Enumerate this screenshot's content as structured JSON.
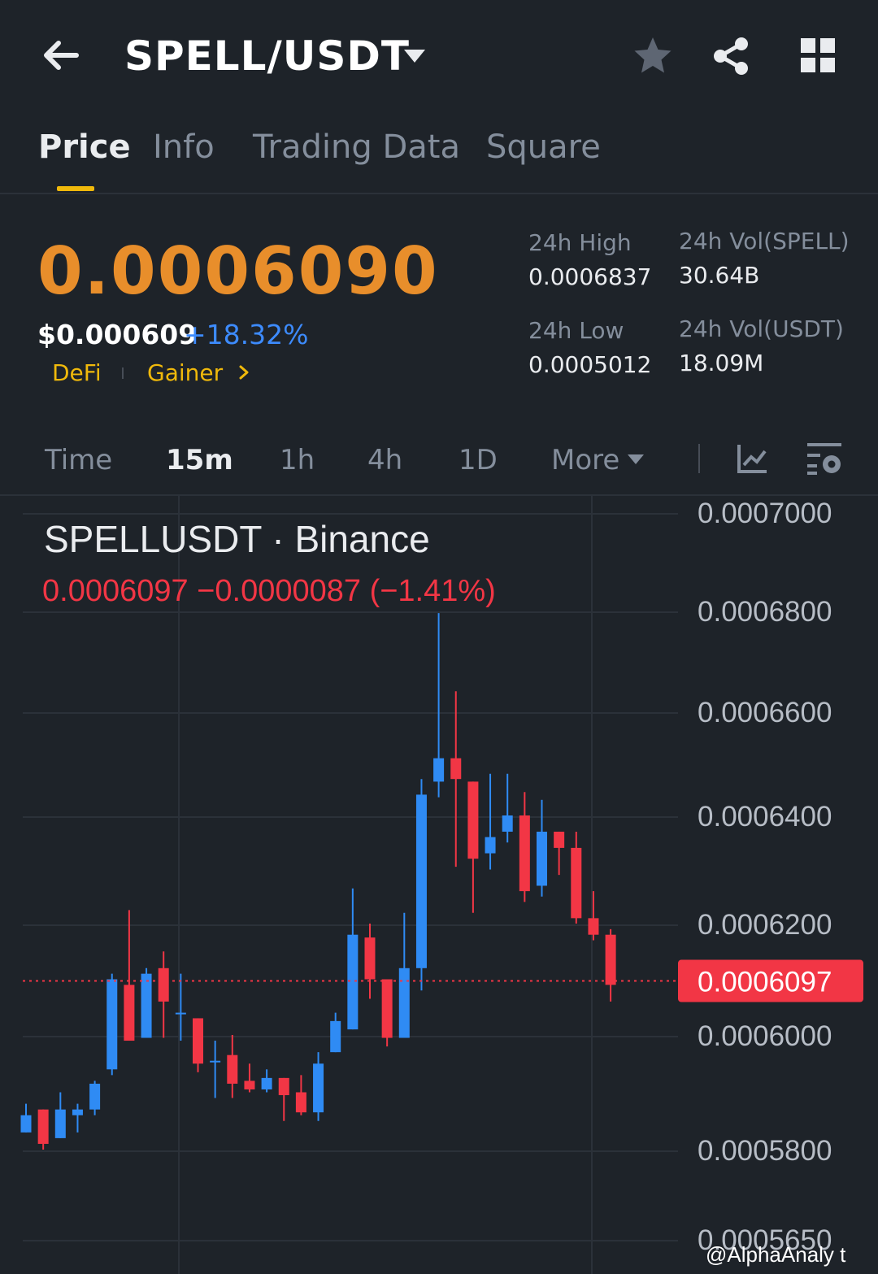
{
  "header": {
    "title": "SPELL/USDT",
    "icons": [
      "back-arrow-icon",
      "caret-down-icon",
      "star-icon",
      "share-icon",
      "grid-icon"
    ]
  },
  "tabs": [
    {
      "label": "Price",
      "active": true
    },
    {
      "label": "Info",
      "active": false
    },
    {
      "label": "Trading Data",
      "active": false
    },
    {
      "label": "Square",
      "active": false
    }
  ],
  "price": {
    "last": "0.0006090",
    "usd": "$0.000609",
    "change_pct": "+18.32%",
    "tags": [
      "DeFi",
      "Gainer"
    ]
  },
  "stats": {
    "high_label": "24h High",
    "high_value": "0.0006837",
    "low_label": "24h Low",
    "low_value": "0.0005012",
    "vol_base_label": "24h Vol(SPELL)",
    "vol_base_value": "30.64B",
    "vol_quote_label": "24h Vol(USDT)",
    "vol_quote_value": "18.09M"
  },
  "timeframes": [
    {
      "label": "Time",
      "active": false
    },
    {
      "label": "15m",
      "active": true
    },
    {
      "label": "1h",
      "active": false
    },
    {
      "label": "4h",
      "active": false
    },
    {
      "label": "1D",
      "active": false
    },
    {
      "label": "More",
      "active": false
    }
  ],
  "chart": {
    "symbol": "SPELLUSDT · Binance",
    "ohlc_line": "0.0006097  −0.0000087 (−1.41%)",
    "current_price_label": "0.0006097",
    "watermark": "@AlphaAnaly t",
    "colors": {
      "up": "#2f8bf4",
      "down": "#f23645",
      "background": "#1e2329",
      "grid": "#2b3139"
    }
  },
  "chart_data": {
    "type": "candlestick",
    "price_axis_ticks": [
      "0.0007000",
      "0.0006800",
      "0.0006600",
      "0.0006400",
      "0.0006200",
      "0.0006000",
      "0.0005800",
      "0.0005650"
    ],
    "last_price": 0.0006097,
    "candles": [
      {
        "o": 0.000583,
        "h": 0.000588,
        "l": 0.000583,
        "c": 0.000586
      },
      {
        "o": 0.000587,
        "h": 0.000587,
        "l": 0.00058,
        "c": 0.000581
      },
      {
        "o": 0.000582,
        "h": 0.00059,
        "l": 0.000582,
        "c": 0.000587
      },
      {
        "o": 0.000586,
        "h": 0.000588,
        "l": 0.000583,
        "c": 0.000587
      },
      {
        "o": 0.000587,
        "h": 0.000592,
        "l": 0.000586,
        "c": 0.0005915
      },
      {
        "o": 0.000594,
        "h": 0.000611,
        "l": 0.000593,
        "c": 0.00061
      },
      {
        "o": 0.000609,
        "h": 0.0006225,
        "l": 0.000599,
        "c": 0.000599
      },
      {
        "o": 0.0005995,
        "h": 0.000612,
        "l": 0.0005995,
        "c": 0.000611
      },
      {
        "o": 0.000612,
        "h": 0.000615,
        "l": 0.0005995,
        "c": 0.000606
      },
      {
        "o": 0.000604,
        "h": 0.000611,
        "l": 0.000599,
        "c": 0.000604
      },
      {
        "o": 0.000603,
        "h": 0.000603,
        "l": 0.0005935,
        "c": 0.000595
      },
      {
        "o": 0.0005955,
        "h": 0.000599,
        "l": 0.000589,
        "c": 0.0005955
      },
      {
        "o": 0.0005965,
        "h": 0.0006,
        "l": 0.000589,
        "c": 0.0005915
      },
      {
        "o": 0.000592,
        "h": 0.000595,
        "l": 0.00059,
        "c": 0.0005905
      },
      {
        "o": 0.0005905,
        "h": 0.000594,
        "l": 0.00059,
        "c": 0.0005925
      },
      {
        "o": 0.0005925,
        "h": 0.0005925,
        "l": 0.000585,
        "c": 0.0005895
      },
      {
        "o": 0.00059,
        "h": 0.000593,
        "l": 0.000586,
        "c": 0.0005865
      },
      {
        "o": 0.0005865,
        "h": 0.000597,
        "l": 0.000585,
        "c": 0.000595
      },
      {
        "o": 0.000597,
        "h": 0.000604,
        "l": 0.000597,
        "c": 0.0006025
      },
      {
        "o": 0.000601,
        "h": 0.0006265,
        "l": 0.000601,
        "c": 0.000618
      },
      {
        "o": 0.0006175,
        "h": 0.00062,
        "l": 0.0006065,
        "c": 0.00061
      },
      {
        "o": 0.00061,
        "h": 0.00061,
        "l": 0.000598,
        "c": 0.0005995
      },
      {
        "o": 0.0005995,
        "h": 0.000622,
        "l": 0.0005995,
        "c": 0.000612
      },
      {
        "o": 0.000612,
        "h": 0.000647,
        "l": 0.000608,
        "c": 0.000644
      },
      {
        "o": 0.0006465,
        "h": 0.0006795,
        "l": 0.0006435,
        "c": 0.000651
      },
      {
        "o": 0.000651,
        "h": 0.000664,
        "l": 0.0006305,
        "c": 0.000647
      },
      {
        "o": 0.0006465,
        "h": 0.0006465,
        "l": 0.000622,
        "c": 0.000632
      },
      {
        "o": 0.000633,
        "h": 0.000648,
        "l": 0.00063,
        "c": 0.000636
      },
      {
        "o": 0.000637,
        "h": 0.000648,
        "l": 0.000635,
        "c": 0.00064
      },
      {
        "o": 0.00064,
        "h": 0.0006445,
        "l": 0.000624,
        "c": 0.000626
      },
      {
        "o": 0.000627,
        "h": 0.000643,
        "l": 0.000625,
        "c": 0.000637
      },
      {
        "o": 0.000637,
        "h": 0.000637,
        "l": 0.000629,
        "c": 0.000634
      },
      {
        "o": 0.000634,
        "h": 0.000637,
        "l": 0.00062,
        "c": 0.000621
      },
      {
        "o": 0.000621,
        "h": 0.000626,
        "l": 0.000617,
        "c": 0.000618
      },
      {
        "o": 0.000618,
        "h": 0.000619,
        "l": 0.000606,
        "c": 0.000609
      }
    ]
  }
}
